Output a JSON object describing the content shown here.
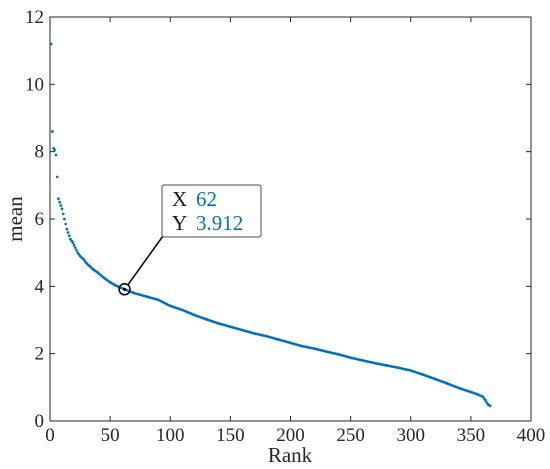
{
  "chart_data": {
    "type": "scatter",
    "xlabel": "Rank",
    "ylabel": "mean",
    "xlim": [
      0,
      400
    ],
    "ylim": [
      0,
      12
    ],
    "x_ticks": [
      0,
      50,
      100,
      150,
      200,
      250,
      300,
      350,
      400
    ],
    "y_ticks": [
      0,
      2,
      4,
      6,
      8,
      10,
      12
    ],
    "grid": false,
    "marker_color": "#0072BD",
    "series": [
      {
        "points": [
          [
            1,
            11.2
          ],
          [
            2,
            8.6
          ],
          [
            3,
            8.1
          ],
          [
            4,
            8.05
          ],
          [
            5,
            7.9
          ],
          [
            7,
            6.6
          ],
          [
            8,
            6.5
          ],
          [
            9,
            6.4
          ],
          [
            10,
            6.3
          ],
          [
            12,
            6.0
          ],
          [
            14,
            5.7
          ],
          [
            15,
            5.6
          ],
          [
            17,
            5.4
          ],
          [
            19,
            5.3
          ],
          [
            21,
            5.15
          ],
          [
            23,
            5.0
          ],
          [
            25,
            4.9
          ],
          [
            28,
            4.8
          ],
          [
            30,
            4.7
          ],
          [
            33,
            4.6
          ],
          [
            36,
            4.5
          ],
          [
            40,
            4.4
          ],
          [
            45,
            4.25
          ],
          [
            50,
            4.12
          ],
          [
            55,
            4.02
          ],
          [
            62,
            3.912
          ],
          [
            70,
            3.8
          ],
          [
            80,
            3.7
          ],
          [
            90,
            3.6
          ],
          [
            100,
            3.42
          ],
          [
            110,
            3.3
          ],
          [
            120,
            3.15
          ],
          [
            130,
            3.02
          ],
          [
            140,
            2.9
          ],
          [
            150,
            2.8
          ],
          [
            160,
            2.7
          ],
          [
            170,
            2.6
          ],
          [
            180,
            2.52
          ],
          [
            190,
            2.42
          ],
          [
            200,
            2.32
          ],
          [
            210,
            2.22
          ],
          [
            220,
            2.15
          ],
          [
            230,
            2.06
          ],
          [
            240,
            1.98
          ],
          [
            250,
            1.88
          ],
          [
            260,
            1.8
          ],
          [
            270,
            1.72
          ],
          [
            280,
            1.65
          ],
          [
            290,
            1.58
          ],
          [
            300,
            1.5
          ],
          [
            310,
            1.38
          ],
          [
            320,
            1.25
          ],
          [
            330,
            1.12
          ],
          [
            340,
            0.98
          ],
          [
            350,
            0.86
          ],
          [
            355,
            0.8
          ],
          [
            360,
            0.72
          ],
          [
            362,
            0.62
          ],
          [
            364,
            0.5
          ],
          [
            366,
            0.45
          ]
        ]
      }
    ],
    "annotations": [
      {
        "x_label": "X",
        "x_value": "62",
        "y_label": "Y",
        "y_value": "3.912",
        "x": 62,
        "y": 3.912
      }
    ]
  }
}
